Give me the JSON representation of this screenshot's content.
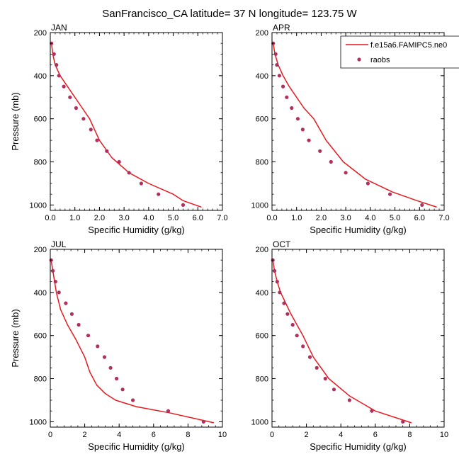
{
  "title": "SanFrancisco_CA  latitude= 37 N longitude= 123.75 W",
  "legend": {
    "model_label": "f.e15a6.FAMIPC5.ne0",
    "obs_label": "raobs",
    "placement": "top-right (inside APR panel)"
  },
  "colors": {
    "model_line": "#e8191e",
    "obs_marker": "#b2305e",
    "frame": "#000000"
  },
  "chart_data": [
    {
      "type": "line",
      "panel_label": "JAN",
      "xlabel": "Specific Humidity (g/kg)",
      "ylabel": "Pressure (mb)",
      "xlim": [
        0,
        7
      ],
      "ylim": [
        1025,
        200
      ],
      "y_inverted": true,
      "xticks": [
        0,
        1,
        2,
        3,
        4,
        5,
        6,
        7
      ],
      "xtick_labels": [
        "0.0",
        "1.0",
        "2.0",
        "3.0",
        "4.0",
        "5.0",
        "6.0",
        "7.0"
      ],
      "yticks": [
        200,
        400,
        600,
        800,
        1000
      ],
      "ytick_labels": [
        "200",
        "400",
        "600",
        "800",
        "1000"
      ],
      "series": [
        {
          "name": "f.e15a6.FAMIPC5.ne0",
          "kind": "line",
          "x": [
            0.05,
            0.1,
            0.2,
            0.4,
            0.7,
            1.0,
            1.3,
            1.6,
            2.0,
            2.5,
            3.2,
            4.0,
            5.0,
            5.4,
            6.15
          ],
          "y": [
            250,
            300,
            350,
            400,
            450,
            500,
            550,
            600,
            700,
            780,
            850,
            900,
            950,
            980,
            1010
          ]
        },
        {
          "name": "raobs",
          "kind": "scatter",
          "x": [
            0.05,
            0.15,
            0.25,
            0.35,
            0.55,
            0.8,
            1.05,
            1.35,
            1.65,
            1.9,
            2.3,
            2.8,
            3.2,
            3.7,
            4.4,
            5.4
          ],
          "y": [
            250,
            300,
            350,
            400,
            450,
            500,
            550,
            600,
            650,
            700,
            750,
            800,
            850,
            900,
            950,
            1000
          ]
        }
      ]
    },
    {
      "type": "line",
      "panel_label": "APR",
      "xlabel": "Specific Humidity (g/kg)",
      "ylabel": "",
      "xlim": [
        0,
        7
      ],
      "ylim": [
        1025,
        200
      ],
      "y_inverted": true,
      "xticks": [
        0,
        1,
        2,
        3,
        4,
        5,
        6,
        7
      ],
      "xtick_labels": [
        "0.0",
        "1.0",
        "2.0",
        "3.0",
        "4.0",
        "5.0",
        "6.0",
        "7.0"
      ],
      "yticks": [
        200,
        400,
        600,
        800,
        1000
      ],
      "ytick_labels": [
        "200",
        "400",
        "600",
        "800",
        "1000"
      ],
      "series": [
        {
          "name": "f.e15a6.FAMIPC5.ne0",
          "kind": "line",
          "x": [
            0.05,
            0.12,
            0.25,
            0.45,
            0.7,
            1.0,
            1.3,
            1.7,
            2.2,
            2.9,
            3.8,
            4.9,
            5.9,
            6.7
          ],
          "y": [
            250,
            300,
            350,
            400,
            450,
            500,
            550,
            600,
            700,
            800,
            880,
            940,
            980,
            1010
          ]
        },
        {
          "name": "raobs",
          "kind": "scatter",
          "x": [
            0.05,
            0.15,
            0.2,
            0.3,
            0.45,
            0.6,
            0.8,
            1.05,
            1.25,
            1.5,
            1.95,
            2.4,
            3.0,
            3.9,
            4.8,
            6.1
          ],
          "y": [
            250,
            300,
            350,
            400,
            450,
            500,
            550,
            600,
            650,
            700,
            750,
            800,
            850,
            900,
            950,
            1000
          ]
        }
      ]
    },
    {
      "type": "line",
      "panel_label": "JUL",
      "xlabel": "Specific Humidity (g/kg)",
      "ylabel": "Pressure (mb)",
      "xlim": [
        0,
        10
      ],
      "ylim": [
        1025,
        200
      ],
      "y_inverted": true,
      "xticks": [
        0,
        2,
        4,
        6,
        8,
        10
      ],
      "xtick_labels": [
        "0",
        "2",
        "4",
        "6",
        "8",
        "10"
      ],
      "yticks": [
        200,
        400,
        600,
        800,
        1000
      ],
      "ytick_labels": [
        "200",
        "400",
        "600",
        "800",
        "1000"
      ],
      "series": [
        {
          "name": "f.e15a6.FAMIPC5.ne0",
          "kind": "line",
          "x": [
            0.05,
            0.15,
            0.35,
            0.6,
            1.0,
            1.5,
            2.0,
            2.3,
            2.7,
            3.2,
            3.8,
            5.0,
            7.0,
            9.5
          ],
          "y": [
            250,
            300,
            400,
            480,
            550,
            620,
            700,
            770,
            830,
            870,
            900,
            930,
            960,
            1005
          ]
        },
        {
          "name": "raobs",
          "kind": "scatter",
          "x": [
            0.05,
            0.15,
            0.3,
            0.5,
            0.9,
            1.25,
            1.65,
            2.2,
            2.75,
            3.15,
            3.5,
            3.85,
            4.2,
            4.8,
            6.85,
            8.9
          ],
          "y": [
            250,
            300,
            350,
            400,
            450,
            500,
            550,
            600,
            650,
            700,
            750,
            800,
            850,
            900,
            950,
            1000
          ]
        }
      ]
    },
    {
      "type": "line",
      "panel_label": "OCT",
      "xlabel": "Specific Humidity (g/kg)",
      "ylabel": "",
      "xlim": [
        0,
        10
      ],
      "ylim": [
        1025,
        200
      ],
      "y_inverted": true,
      "xticks": [
        0,
        2,
        4,
        6,
        8,
        10
      ],
      "xtick_labels": [
        "0",
        "2",
        "4",
        "6",
        "8",
        "10"
      ],
      "yticks": [
        200,
        400,
        600,
        800,
        1000
      ],
      "ytick_labels": [
        "200",
        "400",
        "600",
        "800",
        "1000"
      ],
      "series": [
        {
          "name": "f.e15a6.FAMIPC5.ne0",
          "kind": "line",
          "x": [
            0.05,
            0.15,
            0.3,
            0.5,
            0.8,
            1.1,
            1.45,
            1.8,
            2.4,
            3.3,
            4.5,
            6.0,
            8.1
          ],
          "y": [
            250,
            300,
            350,
            400,
            450,
            500,
            550,
            600,
            700,
            800,
            880,
            950,
            1005
          ]
        },
        {
          "name": "raobs",
          "kind": "scatter",
          "x": [
            0.05,
            0.15,
            0.3,
            0.45,
            0.7,
            0.9,
            1.2,
            1.45,
            1.8,
            2.2,
            2.6,
            3.1,
            3.6,
            4.5,
            5.8,
            7.6
          ],
          "y": [
            250,
            300,
            350,
            400,
            450,
            500,
            550,
            600,
            650,
            700,
            750,
            800,
            850,
            900,
            950,
            1000
          ]
        }
      ]
    }
  ]
}
